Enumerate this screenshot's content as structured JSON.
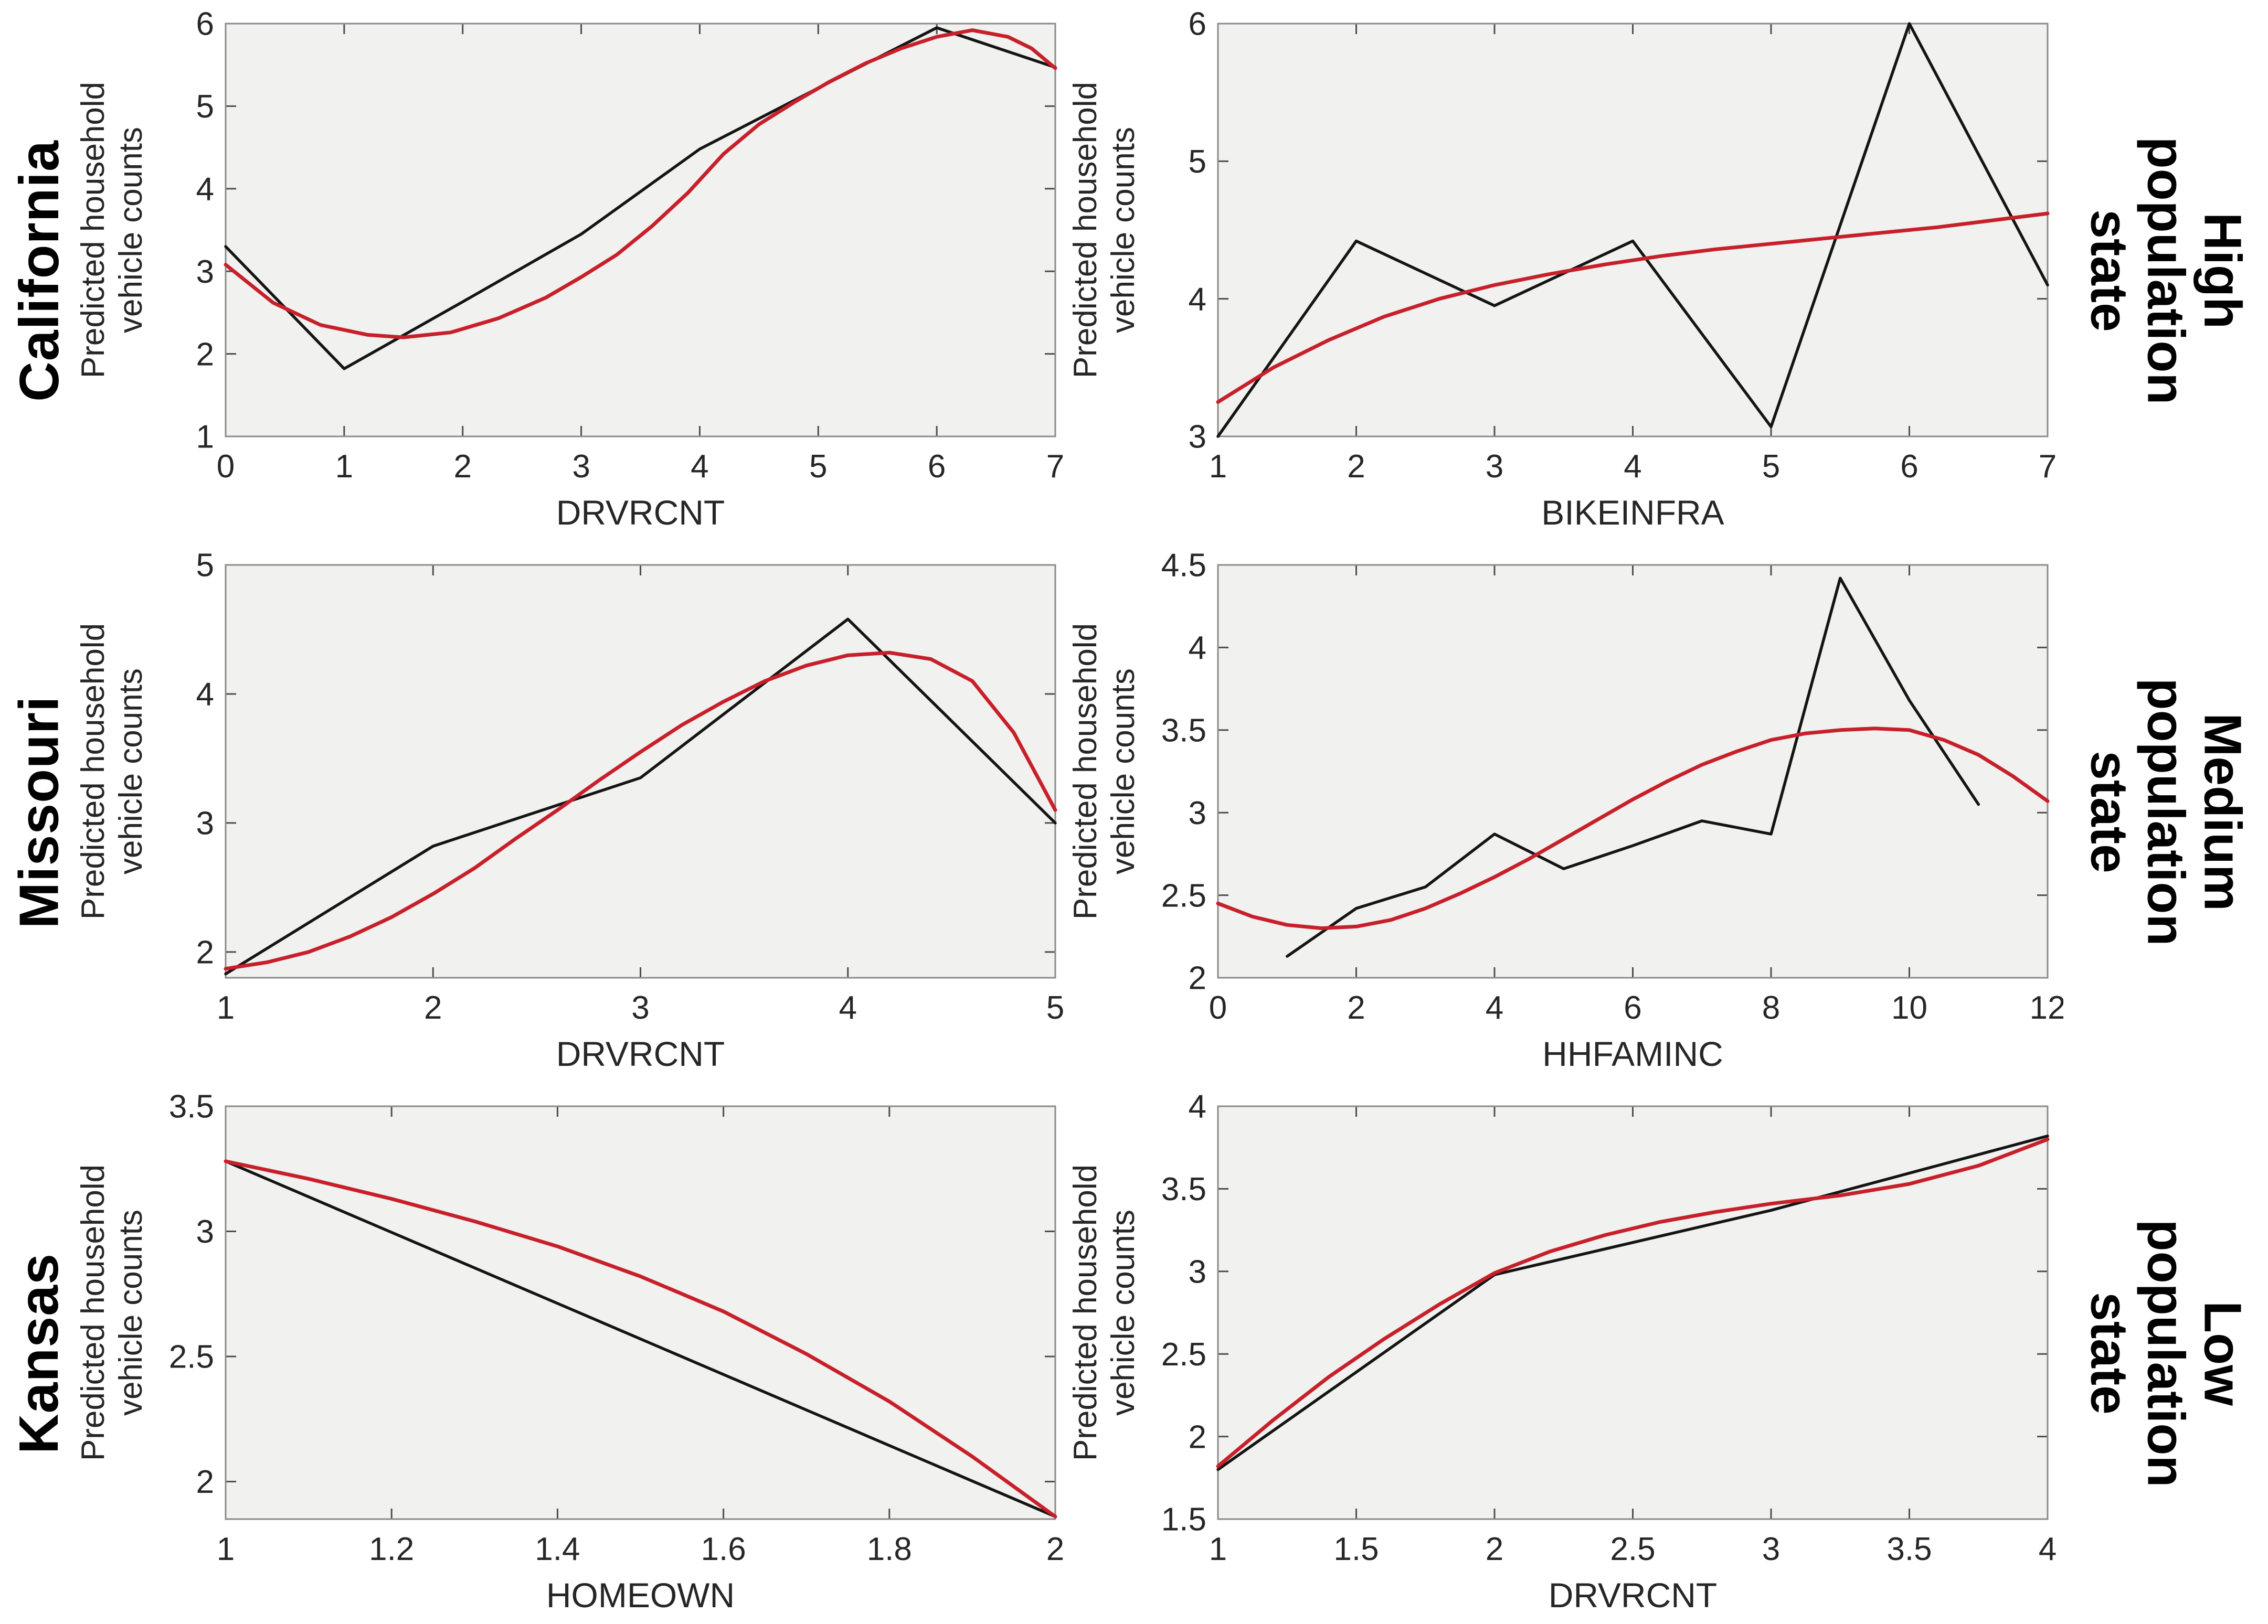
{
  "figure": {
    "background": "#ffffff",
    "plot_background": "#f1f1f0",
    "box_color": "#8a8a8a",
    "tick_color": "#4d4d4d",
    "text_color": "#262626",
    "observed_color": "#141414",
    "smooth_color": "#c7202a",
    "ylabel_line1": "Predicted household",
    "ylabel_line2": "vehicle counts"
  },
  "rows": [
    {
      "left_label": "California",
      "right_lines": [
        "High",
        "population",
        "state"
      ]
    },
    {
      "left_label": "Missouri",
      "right_lines": [
        "Medium",
        "population",
        "state"
      ]
    },
    {
      "left_label": "Kansas",
      "right_lines": [
        "Low",
        "population",
        "state"
      ]
    }
  ],
  "chart_data": [
    {
      "type": "line",
      "id": "california-drvrcnt",
      "xlabel": "DRVRCNT",
      "ylabel": "Predicted household vehicle counts",
      "xlim": [
        0,
        7
      ],
      "ylim": [
        1,
        6
      ],
      "xticks": [
        0,
        1,
        2,
        3,
        4,
        5,
        6,
        7
      ],
      "yticks": [
        1,
        2,
        3,
        4,
        5,
        6
      ],
      "grid": false,
      "series": [
        {
          "name": "observed",
          "color": "#141414",
          "width": 5.5,
          "values": [
            [
              0,
              3.3
            ],
            [
              1,
              1.82
            ],
            [
              2,
              2.63
            ],
            [
              3,
              3.45
            ],
            [
              4,
              4.48
            ],
            [
              5,
              5.22
            ],
            [
              6,
              5.95
            ],
            [
              7,
              5.47
            ]
          ]
        },
        {
          "name": "smooth-fit",
          "color": "#c7202a",
          "width": 7,
          "values": [
            [
              0,
              3.08
            ],
            [
              0.4,
              2.62
            ],
            [
              0.8,
              2.35
            ],
            [
              1.2,
              2.23
            ],
            [
              1.5,
              2.2
            ],
            [
              1.9,
              2.26
            ],
            [
              2.3,
              2.43
            ],
            [
              2.7,
              2.68
            ],
            [
              3,
              2.93
            ],
            [
              3.3,
              3.2
            ],
            [
              3.6,
              3.55
            ],
            [
              3.9,
              3.95
            ],
            [
              4.2,
              4.42
            ],
            [
              4.5,
              4.78
            ],
            [
              4.8,
              5.05
            ],
            [
              5.1,
              5.3
            ],
            [
              5.4,
              5.52
            ],
            [
              5.7,
              5.7
            ],
            [
              6,
              5.84
            ],
            [
              6.3,
              5.92
            ],
            [
              6.6,
              5.84
            ],
            [
              6.8,
              5.7
            ],
            [
              7,
              5.46
            ]
          ]
        }
      ]
    },
    {
      "type": "line",
      "id": "california-bikeinfra",
      "xlabel": "BIKEINFRA",
      "ylabel": "Predicted household vehicle counts",
      "xlim": [
        1,
        7
      ],
      "ylim": [
        3,
        6
      ],
      "xticks": [
        1,
        2,
        3,
        4,
        5,
        6,
        7
      ],
      "yticks": [
        3,
        4,
        5,
        6
      ],
      "grid": false,
      "series": [
        {
          "name": "observed",
          "color": "#141414",
          "width": 5.5,
          "values": [
            [
              1,
              3.0
            ],
            [
              2,
              4.42
            ],
            [
              3,
              3.95
            ],
            [
              4,
              4.42
            ],
            [
              5,
              3.07
            ],
            [
              6,
              6.0
            ],
            [
              7,
              4.1
            ]
          ]
        },
        {
          "name": "smooth-fit",
          "color": "#c7202a",
          "width": 7,
          "values": [
            [
              1,
              3.25
            ],
            [
              1.4,
              3.5
            ],
            [
              1.8,
              3.7
            ],
            [
              2.2,
              3.87
            ],
            [
              2.6,
              4.0
            ],
            [
              3,
              4.1
            ],
            [
              3.4,
              4.18
            ],
            [
              3.8,
              4.25
            ],
            [
              4.2,
              4.31
            ],
            [
              4.6,
              4.36
            ],
            [
              5,
              4.4
            ],
            [
              5.4,
              4.44
            ],
            [
              5.8,
              4.48
            ],
            [
              6.2,
              4.52
            ],
            [
              6.6,
              4.57
            ],
            [
              7,
              4.62
            ]
          ]
        }
      ]
    },
    {
      "type": "line",
      "id": "missouri-drvrcnt",
      "xlabel": "DRVRCNT",
      "ylabel": "Predicted household vehicle counts",
      "xlim": [
        1,
        5
      ],
      "ylim": [
        1.8,
        5
      ],
      "xticks": [
        1,
        2,
        3,
        4,
        5
      ],
      "yticks": [
        2,
        3,
        4,
        5
      ],
      "grid": false,
      "series": [
        {
          "name": "observed",
          "color": "#141414",
          "width": 5.5,
          "values": [
            [
              1,
              1.83
            ],
            [
              2,
              2.82
            ],
            [
              3,
              3.35
            ],
            [
              4,
              4.58
            ],
            [
              5,
              3.0
            ]
          ]
        },
        {
          "name": "smooth-fit",
          "color": "#c7202a",
          "width": 7,
          "values": [
            [
              1,
              1.87
            ],
            [
              1.2,
              1.92
            ],
            [
              1.4,
              2.0
            ],
            [
              1.6,
              2.12
            ],
            [
              1.8,
              2.27
            ],
            [
              2,
              2.45
            ],
            [
              2.2,
              2.65
            ],
            [
              2.4,
              2.88
            ],
            [
              2.6,
              3.1
            ],
            [
              2.8,
              3.33
            ],
            [
              3,
              3.55
            ],
            [
              3.2,
              3.76
            ],
            [
              3.4,
              3.94
            ],
            [
              3.6,
              4.1
            ],
            [
              3.8,
              4.22
            ],
            [
              4,
              4.3
            ],
            [
              4.2,
              4.32
            ],
            [
              4.4,
              4.27
            ],
            [
              4.6,
              4.1
            ],
            [
              4.8,
              3.7
            ],
            [
              5,
              3.1
            ]
          ]
        }
      ]
    },
    {
      "type": "line",
      "id": "missouri-hhfaminc",
      "xlabel": "HHFAMINC",
      "ylabel": "Predicted household vehicle counts",
      "xlim": [
        0,
        12
      ],
      "ylim": [
        2,
        4.5
      ],
      "xticks": [
        0,
        2,
        4,
        6,
        8,
        10,
        12
      ],
      "yticks": [
        2,
        2.5,
        3,
        3.5,
        4,
        4.5
      ],
      "grid": false,
      "series": [
        {
          "name": "observed",
          "color": "#141414",
          "width": 5.5,
          "values": [
            [
              1,
              2.13
            ],
            [
              2,
              2.42
            ],
            [
              3,
              2.55
            ],
            [
              4,
              2.87
            ],
            [
              5,
              2.66
            ],
            [
              6,
              2.8
            ],
            [
              7,
              2.95
            ],
            [
              8,
              2.87
            ],
            [
              9,
              4.42
            ],
            [
              10,
              3.68
            ],
            [
              11,
              3.05
            ]
          ]
        },
        {
          "name": "smooth-fit",
          "color": "#c7202a",
          "width": 7,
          "values": [
            [
              0,
              2.45
            ],
            [
              0.5,
              2.37
            ],
            [
              1,
              2.32
            ],
            [
              1.5,
              2.3
            ],
            [
              2,
              2.31
            ],
            [
              2.5,
              2.35
            ],
            [
              3,
              2.42
            ],
            [
              3.5,
              2.51
            ],
            [
              4,
              2.61
            ],
            [
              4.5,
              2.72
            ],
            [
              5,
              2.84
            ],
            [
              5.5,
              2.96
            ],
            [
              6,
              3.08
            ],
            [
              6.5,
              3.19
            ],
            [
              7,
              3.29
            ],
            [
              7.5,
              3.37
            ],
            [
              8,
              3.44
            ],
            [
              8.5,
              3.48
            ],
            [
              9,
              3.5
            ],
            [
              9.5,
              3.51
            ],
            [
              10,
              3.5
            ],
            [
              10.5,
              3.44
            ],
            [
              11,
              3.35
            ],
            [
              11.5,
              3.22
            ],
            [
              12,
              3.07
            ]
          ]
        }
      ]
    },
    {
      "type": "line",
      "id": "kansas-homeown",
      "xlabel": "HOMEOWN",
      "ylabel": "Predicted household vehicle counts",
      "xlim": [
        1,
        2
      ],
      "ylim": [
        1.85,
        3.5
      ],
      "xticks": [
        1,
        1.2,
        1.4,
        1.6,
        1.8,
        2
      ],
      "yticks": [
        2,
        2.5,
        3,
        3.5
      ],
      "grid": false,
      "series": [
        {
          "name": "observed",
          "color": "#141414",
          "width": 5.5,
          "values": [
            [
              1,
              3.28
            ],
            [
              2,
              1.86
            ]
          ]
        },
        {
          "name": "smooth-fit",
          "color": "#c7202a",
          "width": 7,
          "values": [
            [
              1,
              3.28
            ],
            [
              1.1,
              3.21
            ],
            [
              1.2,
              3.13
            ],
            [
              1.3,
              3.04
            ],
            [
              1.4,
              2.94
            ],
            [
              1.5,
              2.82
            ],
            [
              1.6,
              2.68
            ],
            [
              1.7,
              2.51
            ],
            [
              1.8,
              2.32
            ],
            [
              1.9,
              2.1
            ],
            [
              2,
              1.86
            ]
          ]
        }
      ]
    },
    {
      "type": "line",
      "id": "kansas-drvrcnt",
      "xlabel": "DRVRCNT",
      "ylabel": "Predicted household vehicle counts",
      "xlim": [
        1,
        4
      ],
      "ylim": [
        1.5,
        4
      ],
      "xticks": [
        1,
        1.5,
        2,
        2.5,
        3,
        3.5,
        4
      ],
      "yticks": [
        1.5,
        2,
        2.5,
        3,
        3.5,
        4
      ],
      "grid": false,
      "series": [
        {
          "name": "observed",
          "color": "#141414",
          "width": 5.5,
          "values": [
            [
              1,
              1.8
            ],
            [
              2,
              2.98
            ],
            [
              3,
              3.37
            ],
            [
              4,
              3.82
            ]
          ]
        },
        {
          "name": "smooth-fit",
          "color": "#c7202a",
          "width": 7,
          "values": [
            [
              1,
              1.82
            ],
            [
              1.2,
              2.1
            ],
            [
              1.4,
              2.36
            ],
            [
              1.6,
              2.59
            ],
            [
              1.8,
              2.8
            ],
            [
              2,
              2.99
            ],
            [
              2.2,
              3.12
            ],
            [
              2.4,
              3.22
            ],
            [
              2.6,
              3.3
            ],
            [
              2.8,
              3.36
            ],
            [
              3,
              3.41
            ],
            [
              3.25,
              3.46
            ],
            [
              3.5,
              3.53
            ],
            [
              3.75,
              3.64
            ],
            [
              4,
              3.8
            ]
          ]
        }
      ]
    }
  ]
}
